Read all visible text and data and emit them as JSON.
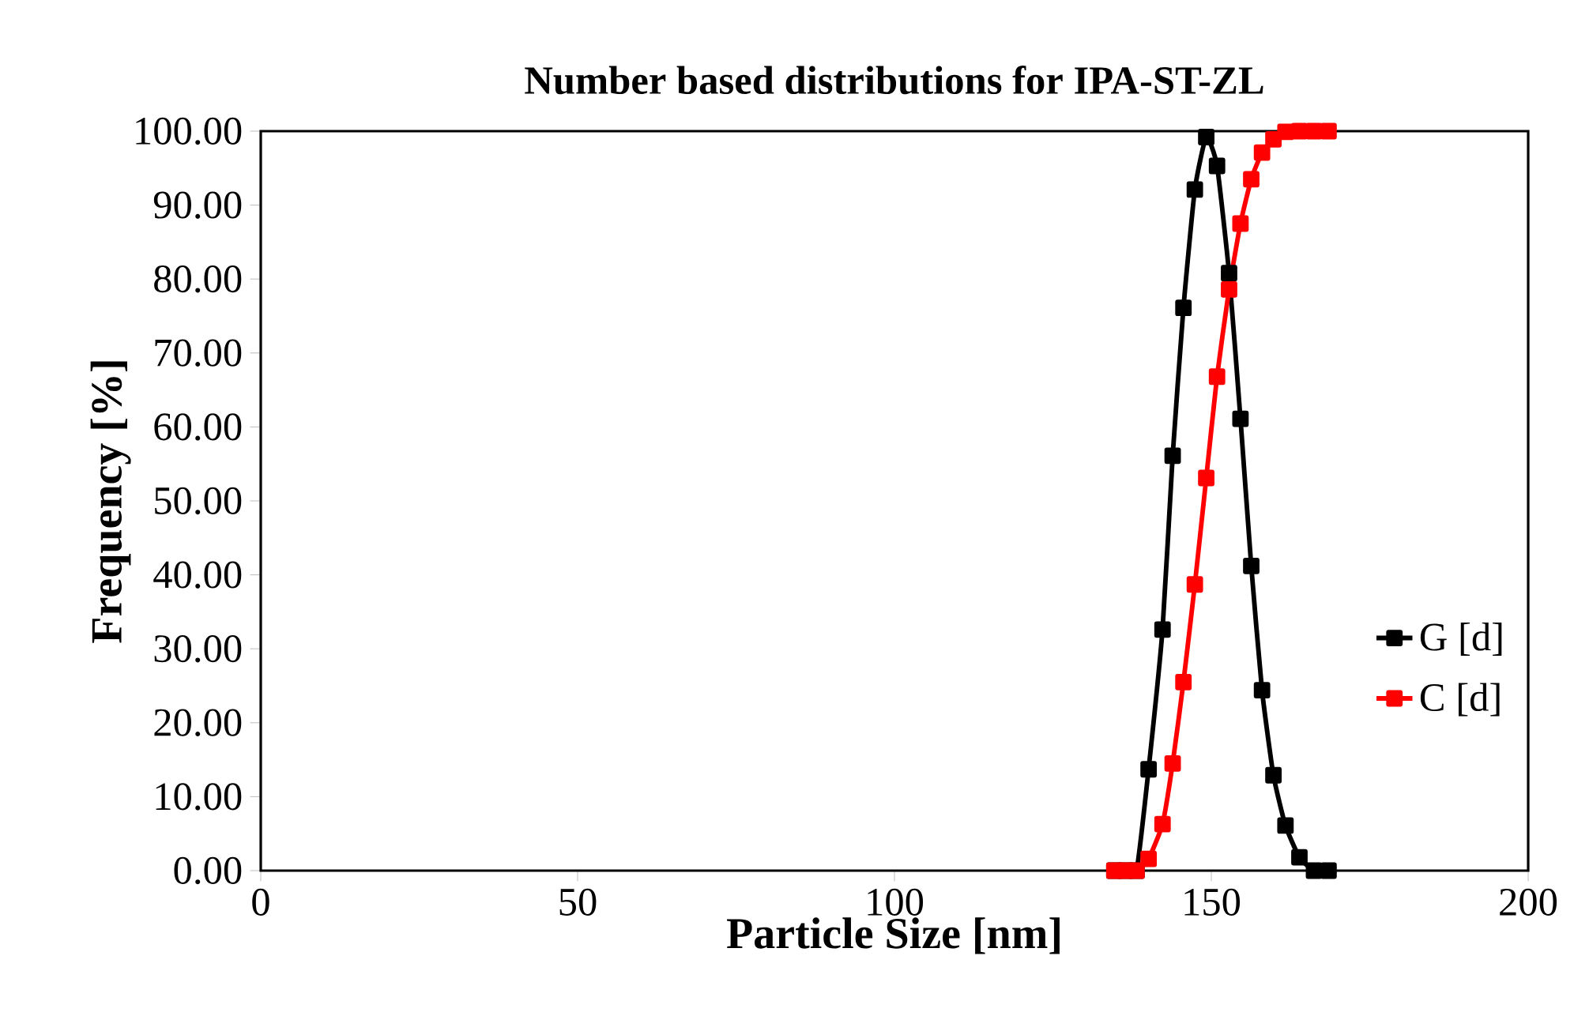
{
  "chart_data": {
    "type": "line",
    "title": "Number based distributions for IPA-ST-ZL",
    "xlabel": "Particle Size [nm]",
    "ylabel": "Frequency [%]",
    "x": [
      134.7,
      136.4,
      138.2,
      140.1,
      142.3,
      143.9,
      145.6,
      147.4,
      149.2,
      150.9,
      152.8,
      154.6,
      156.3,
      158.0,
      159.8,
      161.7,
      163.9,
      166.2,
      168.5
    ],
    "series": [
      {
        "name": "G [d]",
        "color": "#000000",
        "values": [
          0,
          0,
          0,
          13.7,
          32.6,
          56.1,
          76.1,
          92.1,
          99.2,
          95.3,
          80.8,
          61.1,
          41.2,
          24.4,
          12.9,
          6.1,
          1.8,
          0,
          0
        ]
      },
      {
        "name": "C [d]",
        "color": "#ff0000",
        "values": [
          0,
          0,
          0,
          1.6,
          6.3,
          14.5,
          25.5,
          38.7,
          53.1,
          66.8,
          78.6,
          87.5,
          93.5,
          97.1,
          98.9,
          99.9,
          100,
          100,
          100
        ]
      }
    ],
    "xlim": [
      0,
      200
    ],
    "xticks": [
      0,
      50,
      100,
      150,
      200
    ],
    "ylim": [
      0,
      100
    ],
    "yticks": [
      {
        "value": 0,
        "label": "0.00"
      },
      {
        "value": 10,
        "label": "10.00"
      },
      {
        "value": 20,
        "label": "20.00"
      },
      {
        "value": 30,
        "label": "30.00"
      },
      {
        "value": 40,
        "label": "40.00"
      },
      {
        "value": 50,
        "label": "50.00"
      },
      {
        "value": 60,
        "label": "60.00"
      },
      {
        "value": 70,
        "label": "70.00"
      },
      {
        "value": 80,
        "label": "80.00"
      },
      {
        "value": 90,
        "label": "90.00"
      },
      {
        "value": 100,
        "label": "100.00"
      }
    ],
    "marker": "square",
    "line_style": "solid",
    "legend": "right",
    "grid": false
  }
}
